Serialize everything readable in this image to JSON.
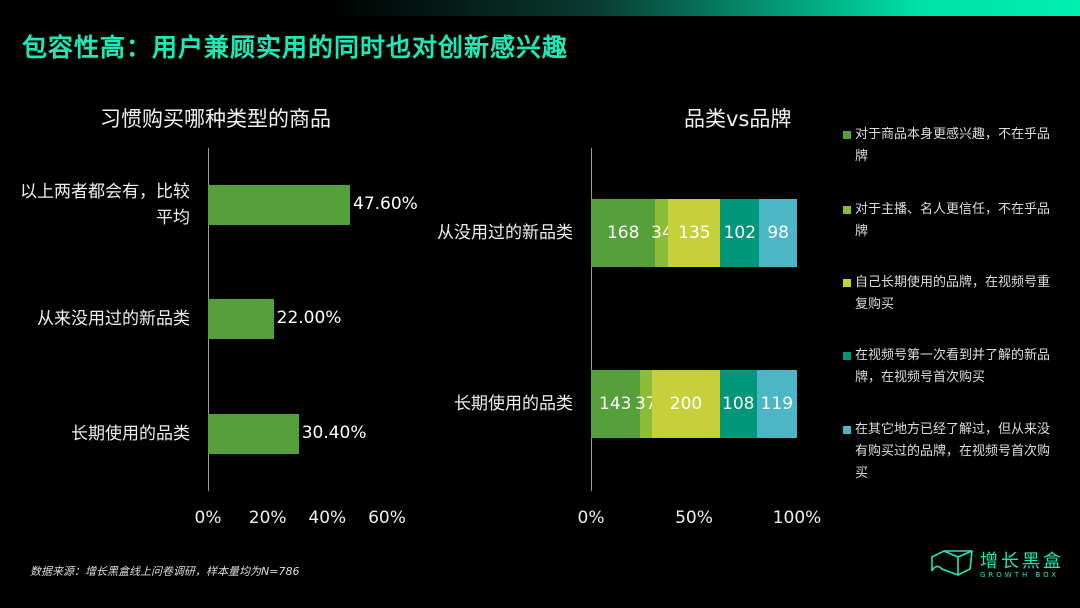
{
  "title": "包容性高：用户兼顾实用的同时也对创新感兴趣",
  "footnote": "数据来源：增长黑盒线上问卷调研，样本量均为N=786",
  "logo": {
    "cn": "增长黑盒",
    "en": "GROWTH BOX"
  },
  "chart_data": [
    {
      "type": "bar",
      "orientation": "horizontal",
      "title": "习惯购买哪种类型的商品",
      "categories": [
        "以上两者都会有，比较平均",
        "从来没用过的新品类",
        "长期使用的品类"
      ],
      "values": [
        47.6,
        22.0,
        30.4
      ],
      "data_labels": [
        "47.60%",
        "22.00%",
        "30.40%"
      ],
      "xlim": [
        0,
        60
      ],
      "x_ticks": [
        "0%",
        "20%",
        "40%",
        "60%"
      ],
      "color": "#55a03a",
      "grid": false
    },
    {
      "type": "bar",
      "orientation": "horizontal",
      "stacked": "percent",
      "title": "品类vs品牌",
      "categories": [
        "从没用过的新品类",
        "长期使用的品类"
      ],
      "x_ticks": [
        "0%",
        "50%",
        "100%"
      ],
      "xlim": [
        0,
        100
      ],
      "legend_position": "right",
      "grid": false,
      "series": [
        {
          "name": "对于商品本身更感兴趣，不在乎品牌",
          "values": [
            168,
            143
          ],
          "color": "#55a03a"
        },
        {
          "name": "对于主播、名人更信任，不在乎品牌",
          "values": [
            34,
            37
          ],
          "color": "#8cbb35"
        },
        {
          "name": "自己长期使用的品牌，在视频号重复购买",
          "values": [
            135,
            200
          ],
          "color": "#c6d03a"
        },
        {
          "name": "在视频号第一次看到并了解的新品牌，在视频号首次购买",
          "values": [
            102,
            108
          ],
          "color": "#00967a"
        },
        {
          "name": "在其它地方已经了解过，但从来没有购买过的品牌，在视频号首次购买",
          "values": [
            98,
            119
          ],
          "color": "#4bb7c6"
        }
      ]
    }
  ]
}
